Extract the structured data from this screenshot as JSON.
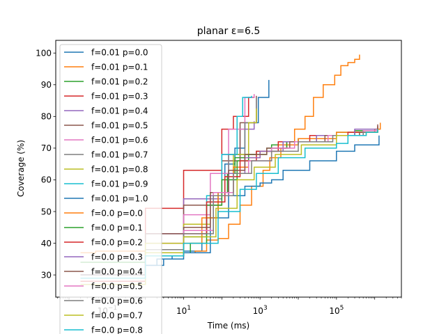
{
  "chart_data": {
    "type": "line",
    "title": "planar ε=6.5",
    "xlabel": "Time (ms)",
    "ylabel": "Coverage (%)",
    "xscale": "log",
    "xlim": [
      0.0045,
      5000000
    ],
    "ylim": [
      23,
      104
    ],
    "grid": false,
    "legend_position": "upper-left (extends below plot area)",
    "x_ticks": [
      {
        "value": 0.1,
        "base": "10",
        "exp": "−1"
      },
      {
        "value": 10,
        "base": "10",
        "exp": "1"
      },
      {
        "value": 1000,
        "base": "10",
        "exp": "3"
      },
      {
        "value": 100000,
        "base": "10",
        "exp": "5"
      }
    ],
    "y_ticks": [
      30,
      40,
      50,
      60,
      70,
      80,
      90,
      100
    ],
    "series": [
      {
        "name": "f=0.01 p=0.0",
        "color": "#1f77b4",
        "points": [
          [
            1,
            33
          ],
          [
            2,
            35
          ],
          [
            5,
            36
          ],
          [
            10,
            37.5
          ],
          [
            30,
            44
          ],
          [
            60,
            55
          ],
          [
            120,
            65
          ],
          [
            220,
            70
          ],
          [
            400,
            78
          ],
          [
            900,
            86
          ],
          [
            1700,
            91.5
          ]
        ]
      },
      {
        "name": "f=0.01 p=0.1",
        "color": "#ff7f0e",
        "points": [
          [
            0.02,
            37
          ],
          [
            0.05,
            37.5
          ],
          [
            1,
            37
          ],
          [
            20,
            37.5
          ],
          [
            40,
            41
          ],
          [
            80,
            41.5
          ],
          [
            150,
            46
          ],
          [
            300,
            52
          ],
          [
            600,
            58
          ],
          [
            1200,
            63
          ],
          [
            1800,
            67
          ],
          [
            3500,
            70
          ],
          [
            5000,
            72
          ],
          [
            8000,
            76
          ],
          [
            15000,
            80
          ],
          [
            25000,
            86
          ],
          [
            45000,
            90
          ],
          [
            90000,
            93
          ],
          [
            130000,
            96
          ],
          [
            200000,
            97
          ],
          [
            300000,
            98
          ],
          [
            400000,
            99.5
          ]
        ]
      },
      {
        "name": "f=0.01 p=0.2",
        "color": "#2ca02c",
        "points": [
          [
            0.02,
            34
          ],
          [
            1,
            37
          ],
          [
            15,
            40
          ],
          [
            40,
            48
          ],
          [
            80,
            56
          ],
          [
            140,
            62
          ],
          [
            220,
            67
          ],
          [
            400,
            68
          ],
          [
            800,
            69
          ],
          [
            2000,
            71
          ],
          [
            10000,
            73
          ],
          [
            100000,
            75
          ],
          [
            1000000,
            76
          ]
        ]
      },
      {
        "name": "f=0.01 p=0.3",
        "color": "#d62728",
        "points": [
          [
            0.02,
            28
          ],
          [
            1,
            51
          ],
          [
            10,
            63
          ],
          [
            100,
            76
          ],
          [
            200,
            80
          ],
          [
            500,
            86
          ],
          [
            700,
            87
          ]
        ]
      },
      {
        "name": "f=0.01 p=0.4",
        "color": "#9467bd",
        "points": [
          [
            0.02,
            30
          ],
          [
            1,
            43
          ],
          [
            10,
            54
          ],
          [
            100,
            68
          ],
          [
            300,
            76
          ],
          [
            700,
            78.5
          ]
        ]
      },
      {
        "name": "f=0.01 p=0.5",
        "color": "#8c564b",
        "points": [
          [
            0.02,
            29
          ],
          [
            1,
            43
          ],
          [
            10,
            52
          ],
          [
            100,
            66
          ],
          [
            300,
            78
          ],
          [
            800,
            86.5
          ]
        ]
      },
      {
        "name": "f=0.01 p=0.6",
        "color": "#e377c2",
        "points": [
          [
            0.02,
            29
          ],
          [
            1,
            40
          ],
          [
            10,
            49
          ],
          [
            50,
            62
          ],
          [
            150,
            76
          ],
          [
            400,
            86
          ],
          [
            700,
            87
          ]
        ]
      },
      {
        "name": "f=0.01 p=0.7",
        "color": "#7f7f7f",
        "points": [
          [
            0.02,
            29
          ],
          [
            1,
            38
          ],
          [
            10,
            44
          ],
          [
            50,
            55
          ],
          [
            150,
            68
          ],
          [
            400,
            78
          ],
          [
            800,
            86
          ]
        ]
      },
      {
        "name": "f=0.01 p=0.8",
        "color": "#bcbd22",
        "points": [
          [
            0.02,
            27
          ],
          [
            1,
            40
          ],
          [
            10,
            46
          ],
          [
            50,
            56
          ],
          [
            200,
            68
          ],
          [
            500,
            78
          ],
          [
            800,
            82.5
          ]
        ]
      },
      {
        "name": "f=0.01 p=0.9",
        "color": "#17becf",
        "points": [
          [
            0.02,
            29
          ],
          [
            1,
            37
          ],
          [
            10,
            45
          ],
          [
            40,
            55
          ],
          [
            100,
            68
          ],
          [
            250,
            80
          ],
          [
            350,
            86
          ],
          [
            600,
            86.5
          ]
        ]
      },
      {
        "name": "f=0.01 p=1.0",
        "color": "#1f77b4",
        "points": [
          [
            0.02,
            30
          ],
          [
            1,
            33
          ],
          [
            3,
            35
          ],
          [
            10,
            37
          ],
          [
            50,
            48
          ],
          [
            150,
            55
          ],
          [
            400,
            58
          ],
          [
            1000,
            59
          ],
          [
            2000,
            60
          ],
          [
            4000,
            63
          ],
          [
            20000,
            66
          ],
          [
            100000,
            69
          ],
          [
            300000,
            71
          ],
          [
            1000000,
            71
          ],
          [
            1300000,
            74
          ]
        ]
      },
      {
        "name": "f=0.0 p=0.0",
        "color": "#ff7f0e",
        "points": [
          [
            0.02,
            30
          ],
          [
            1,
            37
          ],
          [
            10,
            40
          ],
          [
            30,
            48
          ],
          [
            80,
            56
          ],
          [
            200,
            64
          ],
          [
            500,
            67
          ],
          [
            1000,
            69
          ],
          [
            3000,
            71
          ],
          [
            10000,
            73
          ],
          [
            100000,
            75
          ],
          [
            1000000,
            76
          ],
          [
            1400000,
            78
          ]
        ]
      },
      {
        "name": "f=0.0 p=0.1",
        "color": "#2ca02c",
        "points": [
          [
            0.02,
            30
          ],
          [
            1,
            36
          ],
          [
            10,
            42
          ],
          [
            40,
            52
          ],
          [
            100,
            60
          ],
          [
            250,
            66
          ],
          [
            500,
            68
          ],
          [
            1500,
            70
          ],
          [
            5000,
            72
          ],
          [
            30000,
            74
          ],
          [
            300000,
            75.5
          ],
          [
            1200000,
            76.5
          ]
        ]
      },
      {
        "name": "f=0.0 p=0.2",
        "color": "#d62728",
        "points": [
          [
            0.02,
            30
          ],
          [
            1,
            36
          ],
          [
            10,
            43
          ],
          [
            40,
            53
          ],
          [
            120,
            61
          ],
          [
            300,
            66
          ],
          [
            800,
            69
          ],
          [
            3000,
            72
          ],
          [
            20000,
            74
          ],
          [
            200000,
            75
          ],
          [
            1200000,
            77
          ]
        ]
      },
      {
        "name": "f=0.0 p=0.3",
        "color": "#9467bd",
        "points": [
          [
            0.02,
            30
          ],
          [
            1,
            37
          ],
          [
            10,
            44
          ],
          [
            50,
            55
          ],
          [
            150,
            62
          ],
          [
            400,
            67
          ],
          [
            1000,
            69
          ],
          [
            4000,
            72
          ],
          [
            30000,
            74
          ],
          [
            300000,
            76
          ],
          [
            1200000,
            76
          ]
        ]
      },
      {
        "name": "f=0.0 p=0.4",
        "color": "#8c564b",
        "points": [
          [
            0.02,
            30
          ],
          [
            1,
            37
          ],
          [
            10,
            45
          ],
          [
            50,
            56
          ],
          [
            150,
            63
          ],
          [
            400,
            68
          ],
          [
            1500,
            70
          ],
          [
            6000,
            72
          ],
          [
            50000,
            74
          ],
          [
            400000,
            75
          ],
          [
            1200000,
            77.5
          ]
        ]
      },
      {
        "name": "f=0.0 p=0.5",
        "color": "#e377c2",
        "points": [
          [
            0.02,
            30
          ],
          [
            1,
            37
          ],
          [
            10,
            44
          ],
          [
            60,
            56
          ],
          [
            200,
            62
          ],
          [
            500,
            66
          ],
          [
            2000,
            70
          ],
          [
            8000,
            72
          ],
          [
            60000,
            74
          ],
          [
            500000,
            75.5
          ],
          [
            1200000,
            76
          ]
        ]
      },
      {
        "name": "f=0.0 p=0.6",
        "color": "#7f7f7f",
        "points": [
          [
            0.02,
            30
          ],
          [
            1,
            37
          ],
          [
            10,
            43
          ],
          [
            60,
            55
          ],
          [
            200,
            62
          ],
          [
            600,
            66
          ],
          [
            2000,
            69
          ],
          [
            10000,
            72
          ],
          [
            80000,
            74
          ],
          [
            500000,
            75
          ],
          [
            1200000,
            76
          ]
        ]
      },
      {
        "name": "f=0.0 p=0.7",
        "color": "#bcbd22",
        "points": [
          [
            0.02,
            29
          ],
          [
            1,
            37
          ],
          [
            10,
            42
          ],
          [
            70,
            51
          ],
          [
            250,
            60
          ],
          [
            700,
            64
          ],
          [
            2500,
            68
          ],
          [
            12000,
            71
          ],
          [
            100000,
            74
          ],
          [
            600000,
            75
          ],
          [
            1200000,
            76
          ]
        ]
      },
      {
        "name": "f=0.0 p=0.8",
        "color": "#17becf",
        "points": [
          [
            0.02,
            29
          ],
          [
            1,
            36
          ],
          [
            10,
            40
          ],
          [
            80,
            50
          ],
          [
            300,
            57
          ],
          [
            800,
            62
          ],
          [
            3000,
            67
          ],
          [
            15000,
            70
          ],
          [
            100000,
            71.5
          ],
          [
            200000,
            74
          ],
          [
            600000,
            75
          ],
          [
            1200000,
            76
          ]
        ]
      }
    ]
  }
}
